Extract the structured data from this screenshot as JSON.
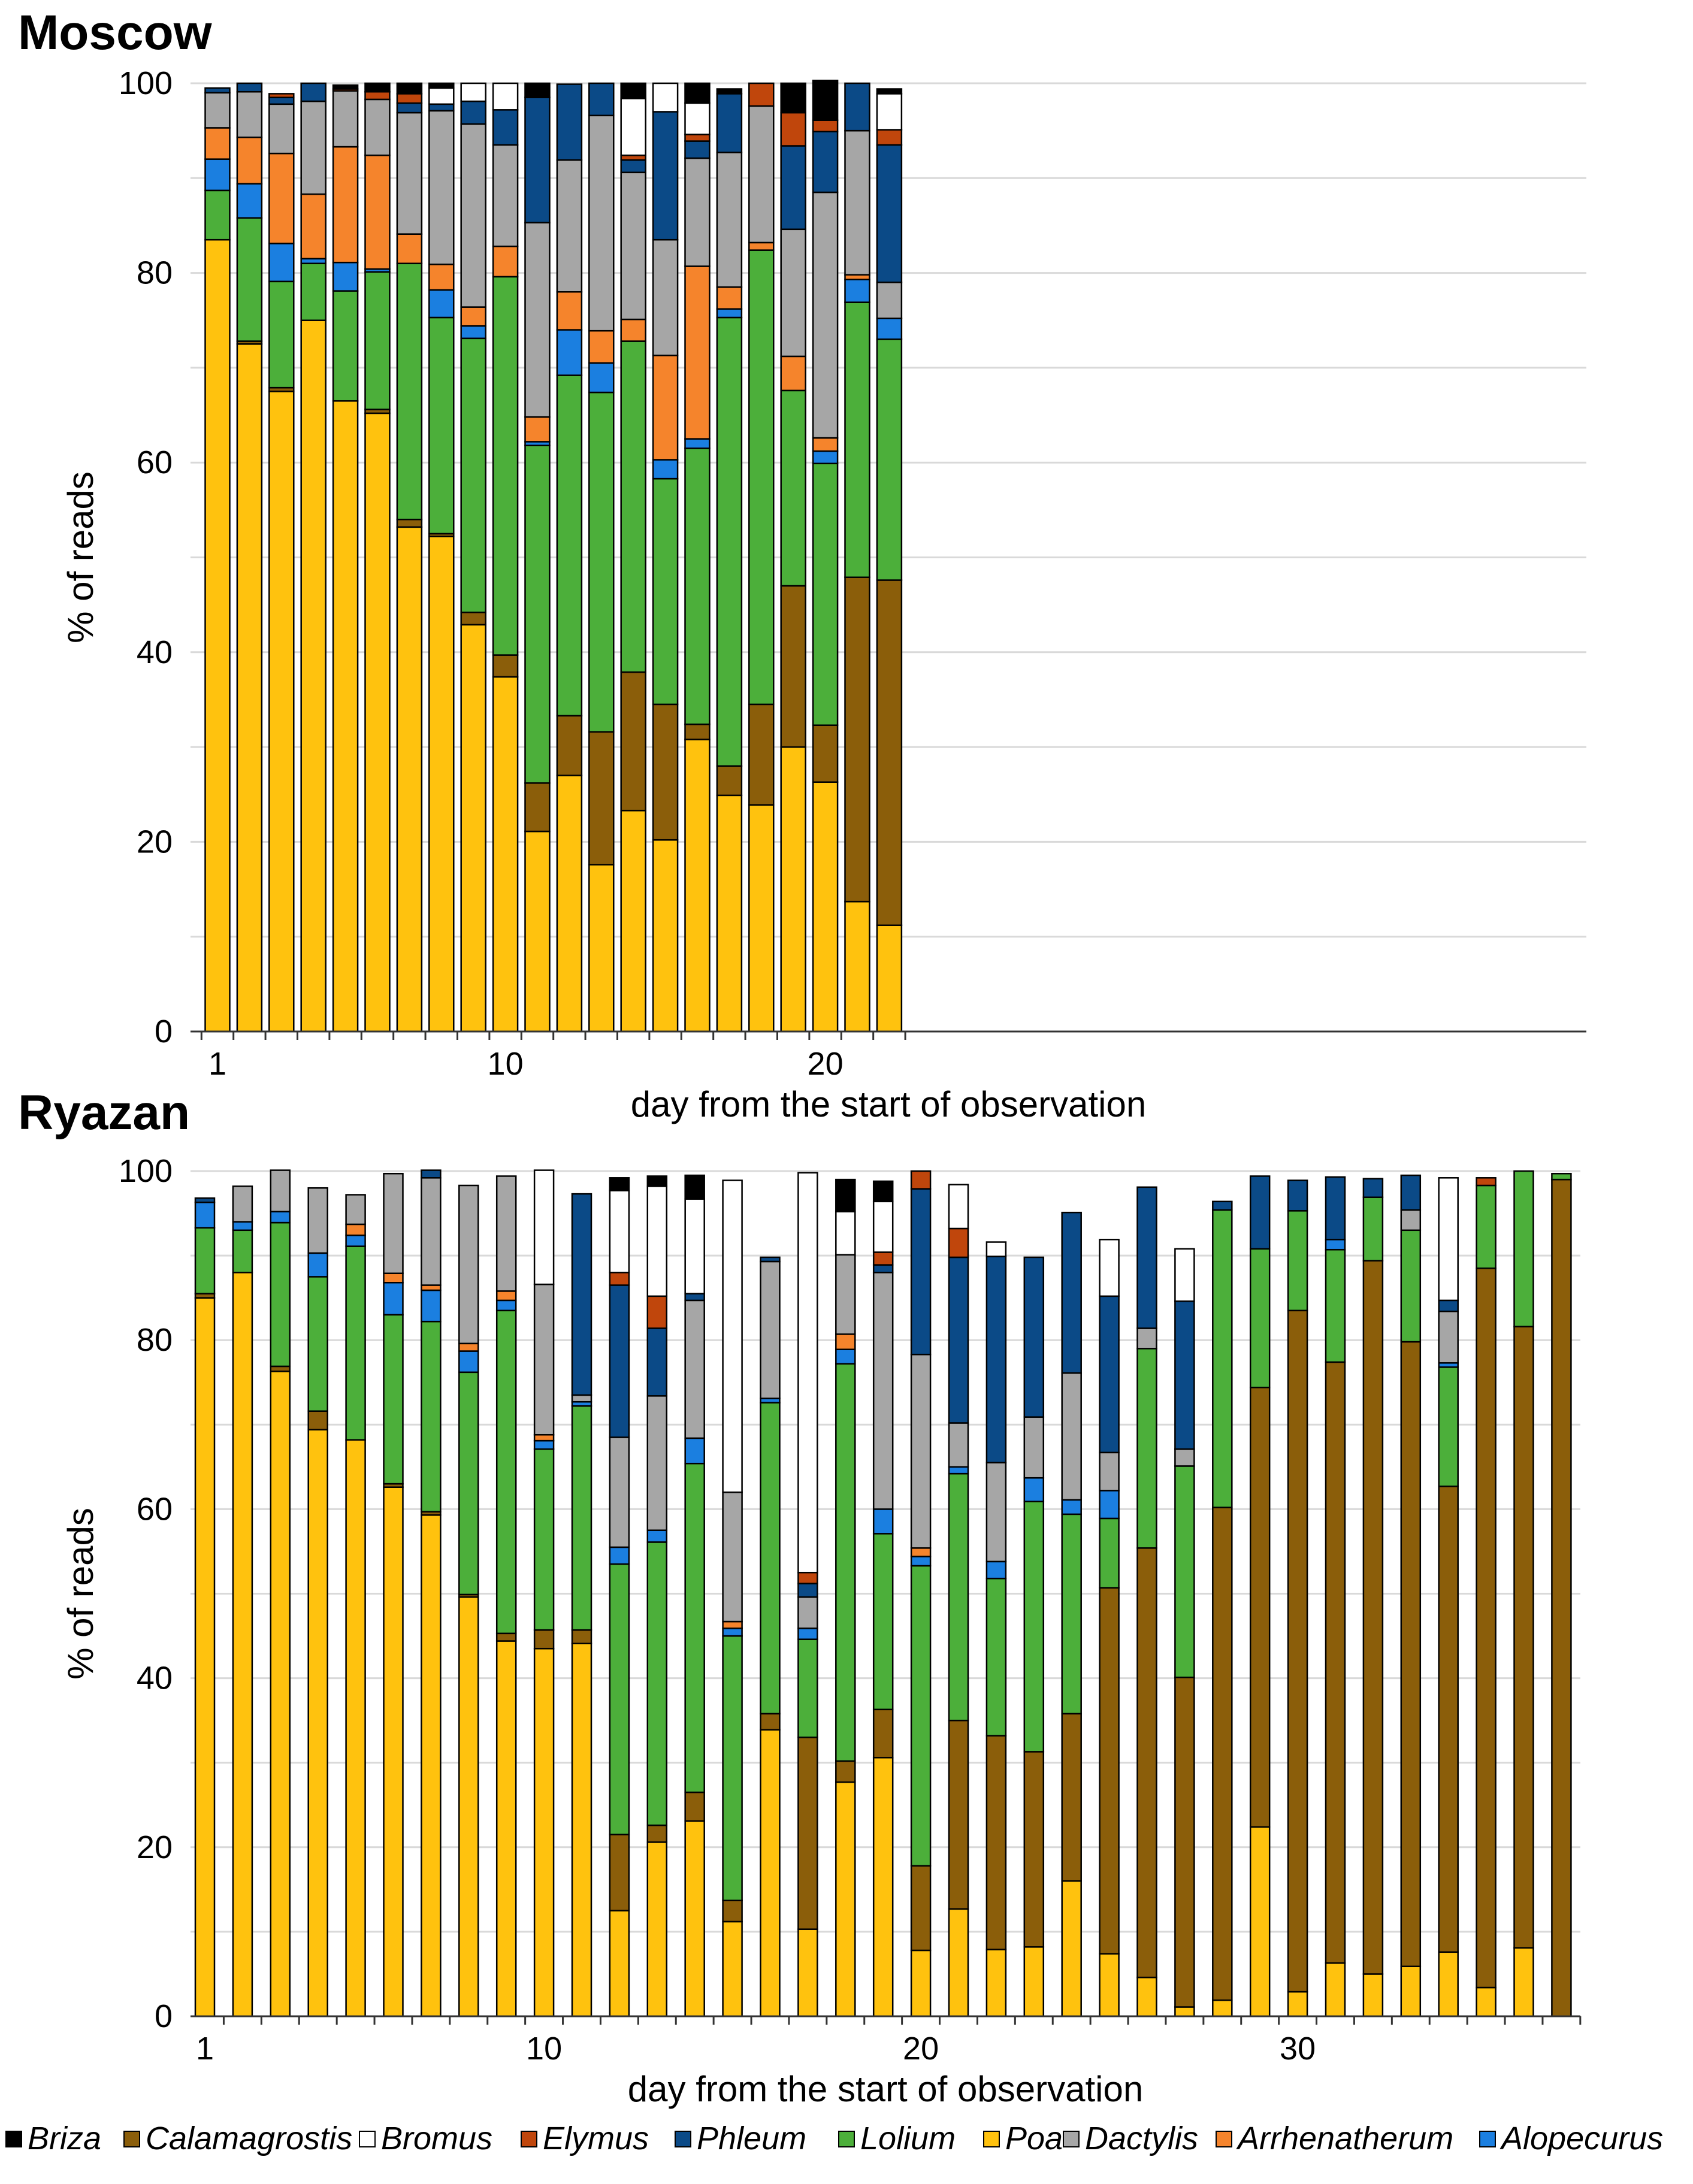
{
  "chart_data": {
    "type": "stacked-bar",
    "stack_order": [
      "Poa",
      "Calamagrostis",
      "Lolium",
      "Alopecurus",
      "Arrhenatherum",
      "Dactylis",
      "Phleum",
      "Elymus",
      "Bromus",
      "Briza"
    ],
    "legend": {
      "placement": "bottom",
      "entries": [
        {
          "name": "Briza",
          "color": "#000000"
        },
        {
          "name": "Calamagrostis",
          "color": "#8B5E0A"
        },
        {
          "name": "Bromus",
          "color": "#FFFFFF"
        },
        {
          "name": "Elymus",
          "color": "#C0460C"
        },
        {
          "name": "Phleum",
          "color": "#0B4A87"
        },
        {
          "name": "Lolium",
          "color": "#4CAF3A"
        },
        {
          "name": "Poa",
          "color": "#FFC20E"
        },
        {
          "name": "Dactylis",
          "color": "#A6A6A6"
        },
        {
          "name": "Arrhenatherum",
          "color": "#F5842C"
        },
        {
          "name": "Alopecurus",
          "color": "#1B7FE0"
        }
      ]
    },
    "panels": [
      {
        "title": "Moscow",
        "xlabel": "day from the start of observation",
        "ylabel": "% of reads",
        "ylim": [
          0,
          100
        ],
        "yticks": [
          0,
          20,
          40,
          60,
          80,
          100
        ],
        "xticks": [
          1,
          10,
          20
        ],
        "grid": true,
        "days": [
          1,
          2,
          3,
          4,
          5,
          6,
          7,
          8,
          9,
          10,
          11,
          12,
          13,
          14,
          15,
          16,
          17,
          18,
          19,
          20,
          21,
          22
        ],
        "series": [
          {
            "name": "Poa",
            "values": [
              83.5,
              72.5,
              67.5,
              75,
              66.5,
              65.2,
              53.2,
              52.2,
              42.9,
              37.4,
              21.1,
              27,
              17.6,
              23.3,
              20.2,
              30.8,
              24.9,
              23.9,
              30,
              26.3,
              13.7,
              11.2
            ]
          },
          {
            "name": "Calamagrostis",
            "values": [
              0,
              0.3,
              0.4,
              0,
              0,
              0.4,
              0.8,
              0.3,
              1.3,
              2.3,
              5.1,
              6.3,
              14,
              14.6,
              14.3,
              1.6,
              3.1,
              10.6,
              17,
              6,
              34.2,
              36.4
            ]
          },
          {
            "name": "Lolium",
            "values": [
              5.2,
              13,
              11.2,
              6,
              11.6,
              14.5,
              27,
              22.8,
              28.9,
              39.9,
              35.6,
              35.9,
              35.8,
              34.9,
              23.8,
              29.1,
              47.3,
              47.9,
              20.6,
              27.6,
              29,
              25.4
            ]
          },
          {
            "name": "Alopecurus",
            "values": [
              3.3,
              3.6,
              4,
              0.5,
              3,
              0.3,
              0,
              2.9,
              1.3,
              0,
              0.4,
              4.8,
              3.1,
              0,
              2,
              1,
              0.9,
              0,
              0,
              1.3,
              2.4,
              2.2
            ]
          },
          {
            "name": "Arrhenatherum",
            "values": [
              3.3,
              4.9,
              9.5,
              6.8,
              12.2,
              12,
              3.1,
              2.7,
              2,
              3.2,
              2.6,
              4,
              3.4,
              2.3,
              11,
              18.2,
              2.3,
              0.8,
              3.6,
              1.4,
              0.5,
              0
            ]
          },
          {
            "name": "Dactylis",
            "values": [
              3.7,
              4.8,
              5.2,
              9.8,
              5.9,
              5.9,
              12.8,
              16.2,
              19.3,
              10.7,
              20.5,
              13.9,
              22.7,
              15.5,
              12.2,
              11.4,
              14.2,
              14.4,
              13.4,
              25.9,
              15.2,
              3.8
            ]
          },
          {
            "name": "Phleum",
            "values": [
              0.5,
              0.9,
              0.7,
              1.9,
              0,
              0,
              1,
              0.7,
              2.4,
              3.7,
              13.2,
              8,
              3.4,
              1.3,
              13.5,
              1.8,
              6.2,
              0,
              8.8,
              6.4,
              5,
              14.5
            ]
          },
          {
            "name": "Elymus",
            "values": [
              0,
              0,
              0.4,
              0,
              0.2,
              0.8,
              1,
              0,
              0,
              0,
              0,
              0,
              0,
              0.5,
              0,
              0.7,
              0,
              2.4,
              3.5,
              1.2,
              0,
              1.6
            ]
          },
          {
            "name": "Bromus",
            "values": [
              0,
              0,
              0,
              0,
              0,
              0,
              0,
              1.7,
              1.9,
              2.8,
              0,
              0,
              0,
              6,
              3,
              3.3,
              0,
              0,
              0,
              0,
              0,
              3.8
            ]
          },
          {
            "name": "Briza",
            "values": [
              0,
              0,
              0,
              0,
              0.4,
              0.9,
              1.1,
              0.5,
              0,
              0,
              1.5,
              0,
              0,
              1.6,
              0,
              2.1,
              0.5,
              0,
              3.1,
              4.2,
              0,
              0.5
            ]
          }
        ]
      },
      {
        "title": "Ryazan",
        "xlabel": "day from the start of observation",
        "ylabel": "% of reads",
        "ylim": [
          0,
          100
        ],
        "yticks": [
          0,
          20,
          40,
          60,
          80,
          100
        ],
        "xticks": [
          1,
          10,
          20,
          30
        ],
        "grid": true,
        "days": [
          1,
          2,
          3,
          4,
          5,
          6,
          7,
          8,
          9,
          10,
          11,
          12,
          13,
          14,
          15,
          16,
          17,
          18,
          19,
          20,
          21,
          22,
          23,
          24,
          25,
          26,
          27,
          28,
          29,
          30,
          31,
          32,
          33,
          34,
          35,
          36,
          37
        ],
        "series": [
          {
            "name": "Poa",
            "values": [
              85,
              88,
              76.3,
              69.4,
              68.2,
              62.6,
              59.3,
              49.6,
              44.4,
              43.5,
              44.1,
              12.5,
              20.6,
              23.1,
              11.2,
              33.9,
              10.3,
              27.7,
              30.6,
              7.8,
              12.7,
              7.9,
              8.2,
              16,
              7.4,
              4.6,
              1.1,
              1.9,
              22.4,
              2.9,
              6.3,
              5,
              5.9,
              7.6,
              3.4,
              8.1,
              0
            ]
          },
          {
            "name": "Calamagrostis",
            "values": [
              0.5,
              0,
              0.6,
              2.2,
              0,
              0.4,
              0.4,
              0.3,
              0.9,
              2.2,
              1.6,
              9,
              2,
              3.4,
              2.5,
              1.9,
              22.7,
              2.5,
              5.7,
              10,
              22.3,
              25.3,
              23.1,
              19.8,
              43.3,
              50.8,
              39,
              58.3,
              52,
              80.6,
              71.1,
              84.4,
              73.9,
              55.1,
              85.1,
              73.5,
              99
            ]
          },
          {
            "name": "Lolium",
            "values": [
              7.8,
              5,
              17,
              15.9,
              22.9,
              20,
              22.5,
              26.3,
              38.2,
              21.4,
              26.5,
              32,
              33.5,
              38.9,
              31.3,
              36.8,
              11.6,
              47,
              20.8,
              35.5,
              29.2,
              18.6,
              29.6,
              23.6,
              8.2,
              23.6,
              25,
              35.2,
              16.4,
              11.8,
              13.3,
              7.5,
              13.2,
              14.1,
              9.8,
              18.4,
              0.7
            ]
          },
          {
            "name": "Alopecurus",
            "values": [
              3,
              1,
              1.3,
              2.8,
              1.3,
              3.8,
              3.7,
              2.5,
              1.2,
              1,
              0.5,
              2,
              1.4,
              3,
              0.9,
              0.5,
              1.3,
              1.7,
              2.9,
              1.1,
              0.8,
              2,
              2.8,
              1.7,
              3.3,
              0,
              0,
              0,
              0,
              0,
              1.2,
              0,
              0,
              0.5,
              0,
              0,
              0
            ]
          },
          {
            "name": "Arrhenatherum",
            "values": [
              0,
              0,
              0,
              0,
              1.3,
              1.1,
              0.6,
              0.9,
              1.1,
              0.7,
              0,
              0,
              0,
              0,
              0.8,
              0,
              0,
              1.8,
              0,
              1,
              0,
              0,
              0,
              0,
              0,
              0,
              0,
              0,
              0,
              0,
              0,
              0,
              0,
              0,
              0,
              0,
              0
            ]
          },
          {
            "name": "Dactylis",
            "values": [
              0,
              4.2,
              4.9,
              7.7,
              3.5,
              11.8,
              12.7,
              18.7,
              13.6,
              17.8,
              0.8,
              13,
              15.9,
              16.3,
              15.3,
              16.2,
              3.7,
              9.4,
              28,
              22.9,
              5.2,
              11.7,
              7.2,
              15,
              4.5,
              2.4,
              2,
              0,
              0,
              0,
              0,
              0,
              2.4,
              6.1,
              0,
              0,
              0
            ]
          },
          {
            "name": "Phleum",
            "values": [
              0.5,
              0,
              0,
              0,
              0,
              0,
              0.9,
              0,
              0,
              0,
              23.8,
              18,
              8,
              0.8,
              0,
              0.5,
              1.6,
              0,
              0.9,
              19.6,
              19.6,
              24.4,
              18.9,
              19,
              18.5,
              16.7,
              17.5,
              1,
              8.6,
              3.6,
              7.4,
              2.2,
              4.1,
              1.3,
              0,
              0,
              0
            ]
          },
          {
            "name": "Elymus",
            "values": [
              0,
              0,
              0,
              0,
              0,
              0,
              0,
              0,
              0,
              0,
              0,
              1.5,
              3.8,
              0,
              0,
              0,
              1.3,
              0,
              1.5,
              2.1,
              3.4,
              0,
              0,
              0,
              0,
              0,
              0,
              0,
              0,
              0,
              0,
              0,
              0,
              0,
              0.9,
              0,
              0
            ]
          },
          {
            "name": "Bromus",
            "values": [
              0,
              0,
              0,
              0,
              0,
              0,
              0,
              0,
              0,
              13.5,
              0,
              9.7,
              13,
              11.2,
              36.9,
              0,
              47.3,
              5.1,
              6,
              0,
              5.2,
              1.7,
              0,
              0,
              6.7,
              0,
              6.2,
              0,
              0,
              0,
              0,
              0,
              0,
              14.5,
              0,
              0,
              0
            ]
          },
          {
            "name": "Briza",
            "values": [
              0,
              0,
              0,
              0,
              0,
              0,
              0,
              0,
              0,
              0,
              0,
              1.5,
              1.2,
              2.8,
              0,
              0,
              0,
              3.8,
              2.4,
              0,
              0,
              0,
              0,
              0,
              0,
              0,
              0,
              0,
              0,
              0,
              0,
              0,
              0,
              0,
              0,
              0,
              0
            ]
          }
        ]
      }
    ]
  }
}
